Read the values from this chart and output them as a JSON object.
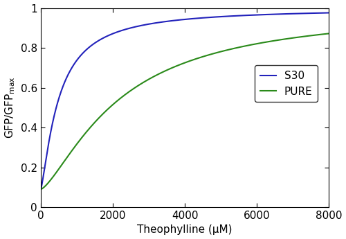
{
  "title": "",
  "xlabel": "Theophylline (μM)",
  "ylabel": "GFP/GFP",
  "ylabel_sub": "max",
  "xlim": [
    0,
    8000
  ],
  "ylim": [
    0,
    1.0
  ],
  "xticks": [
    0,
    2000,
    4000,
    6000,
    8000
  ],
  "yticks": [
    0,
    0.2,
    0.4,
    0.6,
    0.8,
    1
  ],
  "ytick_labels": [
    "0",
    "0.2",
    "0.4",
    "0.6",
    "0.8",
    "1"
  ],
  "s30": {
    "label": "S30",
    "color": "#2222bb",
    "Kd": 500,
    "n": 1.3,
    "basal": 0.09,
    "max_val": 1.0
  },
  "pure": {
    "label": "PURE",
    "color": "#2a8a1a",
    "Kd": 2200,
    "n": 1.4,
    "basal": 0.09,
    "max_val": 1.0
  },
  "background_color": "#ffffff",
  "line_width": 1.5,
  "font_size": 11
}
